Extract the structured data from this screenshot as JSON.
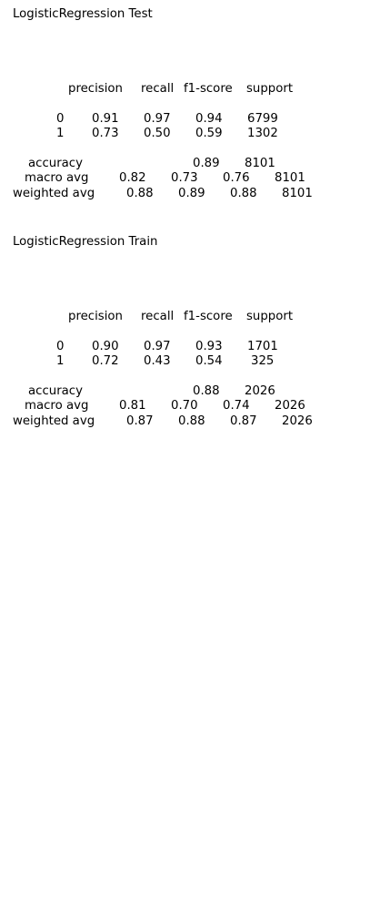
{
  "blocks": [
    {
      "title": "LogisticRegression Test",
      "header": {
        "precision": "precision",
        "recall": "recall",
        "f1": "f1-score",
        "support": "support"
      },
      "classes": [
        {
          "label": "0",
          "precision": "0.91",
          "recall": "0.97",
          "f1": "0.94",
          "support": "6799"
        },
        {
          "label": "1",
          "precision": "0.73",
          "recall": "0.50",
          "f1": "0.59",
          "support": "1302"
        }
      ],
      "accuracy": {
        "label": "accuracy",
        "f1": "0.89",
        "support": "8101"
      },
      "macro_avg": {
        "label": "macro avg",
        "precision": "0.82",
        "recall": "0.73",
        "f1": "0.76",
        "support": "8101"
      },
      "weighted_avg": {
        "label": "weighted avg",
        "precision": "0.88",
        "recall": "0.89",
        "f1": "0.88",
        "support": "8101"
      }
    },
    {
      "title": "LogisticRegression Train",
      "header": {
        "precision": "precision",
        "recall": "recall",
        "f1": "f1-score",
        "support": "support"
      },
      "classes": [
        {
          "label": "0",
          "precision": "0.90",
          "recall": "0.97",
          "f1": "0.93",
          "support": "1701"
        },
        {
          "label": "1",
          "precision": "0.72",
          "recall": "0.43",
          "f1": "0.54",
          "support": "325"
        }
      ],
      "accuracy": {
        "label": "accuracy",
        "f1": "0.88",
        "support": "2026"
      },
      "macro_avg": {
        "label": "macro avg",
        "precision": "0.81",
        "recall": "0.70",
        "f1": "0.74",
        "support": "2026"
      },
      "weighted_avg": {
        "label": "weighted avg",
        "precision": "0.87",
        "recall": "0.88",
        "f1": "0.87",
        "support": "2026"
      }
    }
  ]
}
